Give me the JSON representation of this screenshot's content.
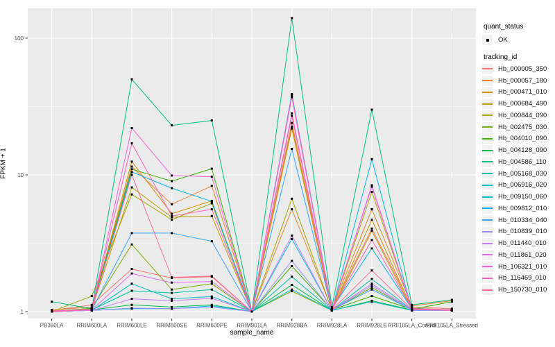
{
  "axes": {
    "y": {
      "title": "FPKM + 1",
      "tick_labels": [
        "100",
        "10",
        "1"
      ]
    },
    "x": {
      "title": "sample_name"
    }
  },
  "legend": {
    "quant_status_title": "quant_status",
    "ok_label": "OK",
    "tracking_id_title": "tracking_id"
  },
  "chart_data": {
    "type": "line",
    "title": "",
    "xlabel": "sample_name",
    "ylabel": "FPKM + 1",
    "y_scale": "log10",
    "y_ticks": [
      1,
      10,
      100
    ],
    "ylim": [
      1,
      150
    ],
    "grid": "on",
    "legend_position": "right",
    "panel_background": "#EBEBEB",
    "gridline_color": "#FFFFFF",
    "tick_color": "#333333",
    "axis_text_color": "#4D4D4D",
    "point_color": "#000000",
    "point_shape": "square",
    "quant_status": {
      "title": "quant_status",
      "items": [
        "OK"
      ]
    },
    "series_legend_title": "tracking_id",
    "categories": [
      "PB350LA",
      "RRIM600LA",
      "RRIM600LE",
      "RRIM600SE",
      "RRIM600PE",
      "RRIM901LA",
      "RRIM928BA",
      "RRIM928LA",
      "RRIM928LE",
      "RRII105LA_Control",
      "RRII105LA_Stressed"
    ],
    "series": [
      {
        "name": "Hb_000005_350",
        "color": "#F8766D",
        "values": [
          1.02,
          1.12,
          2.05,
          1.76,
          1.8,
          1.0,
          24.0,
          1.05,
          4.05,
          1.08,
          1.05
        ]
      },
      {
        "name": "Hb_000057_180",
        "color": "#EA8331",
        "values": [
          1.03,
          1.08,
          11.5,
          6.1,
          8.3,
          1.0,
          5.6,
          1.04,
          5.6,
          1.1,
          1.2
        ]
      },
      {
        "name": "Hb_000471_010",
        "color": "#D89000",
        "values": [
          1.0,
          1.05,
          12.5,
          5.2,
          6.45,
          1.0,
          22.5,
          1.02,
          4.7,
          1.05,
          1.03
        ]
      },
      {
        "name": "Hb_000684_490",
        "color": "#C09B00",
        "values": [
          1.0,
          1.04,
          8.1,
          4.9,
          5.0,
          1.0,
          21.8,
          1.02,
          3.9,
          1.04,
          1.02
        ]
      },
      {
        "name": "Hb_000844_090",
        "color": "#A3A500",
        "values": [
          1.0,
          1.3,
          7.2,
          4.7,
          6.2,
          1.0,
          6.7,
          1.03,
          7.5,
          1.06,
          1.03
        ]
      },
      {
        "name": "Hb_002475_030",
        "color": "#7CAE00",
        "values": [
          1.0,
          1.06,
          3.1,
          1.45,
          1.6,
          1.0,
          1.41,
          1.02,
          1.5,
          1.03,
          1.02
        ]
      },
      {
        "name": "Hb_004010_090",
        "color": "#39B600",
        "values": [
          1.01,
          1.05,
          11.0,
          9.0,
          11.1,
          1.0,
          2.15,
          1.03,
          1.3,
          1.04,
          1.18
        ]
      },
      {
        "name": "Hb_004128_090",
        "color": "#00BB4E",
        "values": [
          1.0,
          1.03,
          1.12,
          1.08,
          1.12,
          1.0,
          1.57,
          1.02,
          1.2,
          1.03,
          1.02
        ]
      },
      {
        "name": "Hb_004586_110",
        "color": "#00BF7D",
        "values": [
          1.18,
          1.05,
          50.0,
          23.0,
          25.0,
          1.0,
          140.0,
          1.08,
          30.0,
          1.12,
          1.22
        ]
      },
      {
        "name": "Hb_005168_030",
        "color": "#00C1A3",
        "values": [
          1.0,
          1.03,
          1.42,
          1.37,
          1.45,
          1.0,
          1.8,
          1.02,
          1.73,
          1.03,
          1.02
        ]
      },
      {
        "name": "Hb_006916_020",
        "color": "#00BFC4",
        "values": [
          1.0,
          1.02,
          1.6,
          1.24,
          1.29,
          1.0,
          1.45,
          1.02,
          1.18,
          1.02,
          1.02
        ]
      },
      {
        "name": "Hb_009150_060",
        "color": "#00BAE0",
        "values": [
          1.0,
          1.02,
          1.05,
          1.05,
          1.1,
          1.0,
          3.4,
          1.02,
          13.0,
          1.02,
          1.02
        ]
      },
      {
        "name": "Hb_009812_010",
        "color": "#00B0F6",
        "values": [
          1.0,
          1.04,
          10.5,
          8.0,
          6.4,
          1.0,
          39.0,
          1.05,
          2.9,
          1.05,
          1.03
        ]
      },
      {
        "name": "Hb_010334_040",
        "color": "#35A2FF",
        "values": [
          1.0,
          1.03,
          3.75,
          3.75,
          3.27,
          1.0,
          15.5,
          1.03,
          1.45,
          1.03,
          1.02
        ]
      },
      {
        "name": "Hb_010839_010",
        "color": "#9590FF",
        "values": [
          1.0,
          1.02,
          1.06,
          1.05,
          1.08,
          1.0,
          2.35,
          1.02,
          1.55,
          1.02,
          1.02
        ]
      },
      {
        "name": "Hb_011440_010",
        "color": "#C77CFF",
        "values": [
          1.0,
          1.02,
          1.24,
          1.2,
          1.25,
          1.0,
          3.6,
          1.02,
          1.6,
          1.03,
          1.02
        ]
      },
      {
        "name": "Hb_011861_020",
        "color": "#E76BF3",
        "values": [
          1.0,
          1.03,
          1.9,
          1.63,
          1.66,
          1.0,
          28.2,
          1.03,
          8.4,
          1.04,
          1.02
        ]
      },
      {
        "name": "Hb_106321_010",
        "color": "#FA62DB",
        "values": [
          1.01,
          1.04,
          22.0,
          9.9,
          9.7,
          1.0,
          38.0,
          1.04,
          8.2,
          1.05,
          1.03
        ]
      },
      {
        "name": "Hb_116469_010",
        "color": "#FF62BC",
        "values": [
          1.01,
          1.04,
          17.0,
          5.0,
          5.6,
          1.0,
          37.0,
          1.04,
          3.34,
          1.05,
          1.03
        ]
      },
      {
        "name": "Hb_150730_010",
        "color": "#FF6A98",
        "values": [
          1.0,
          1.03,
          10.0,
          1.78,
          1.82,
          1.0,
          27.0,
          1.03,
          2.0,
          1.04,
          1.02
        ]
      }
    ]
  }
}
